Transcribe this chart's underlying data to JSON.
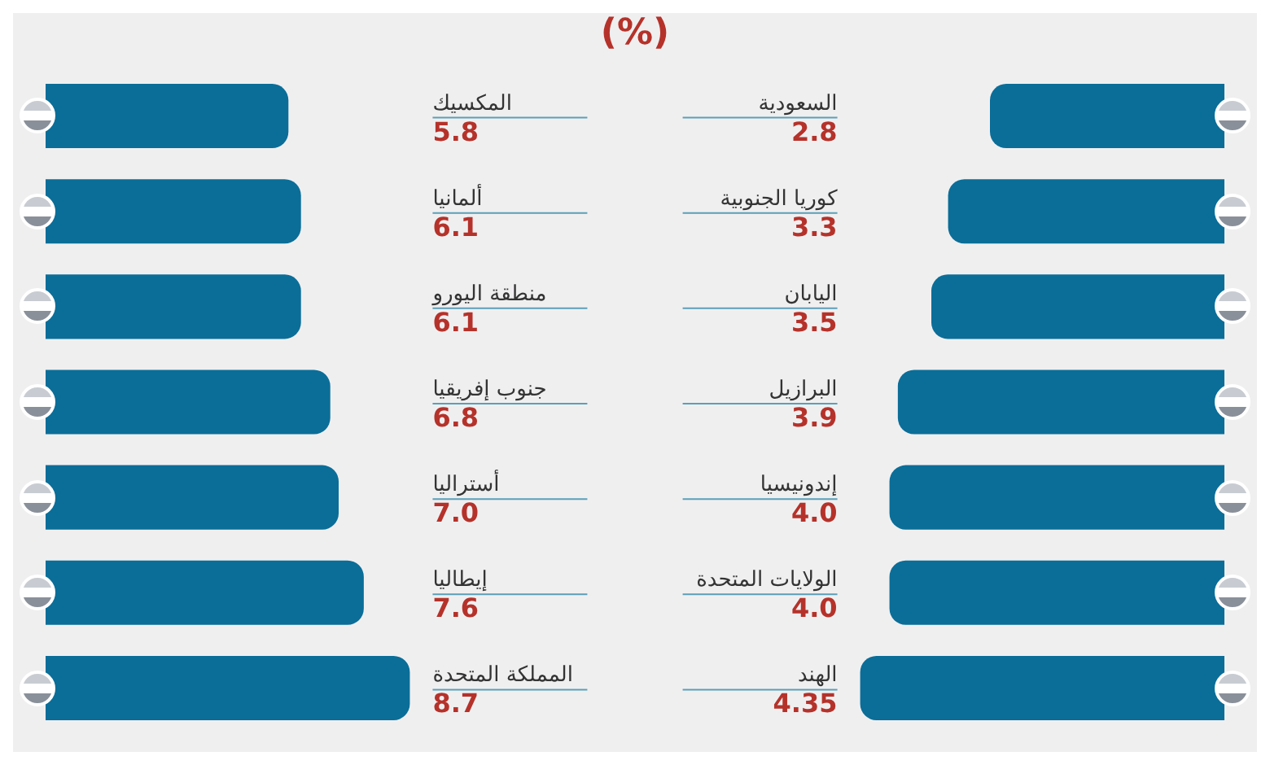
{
  "chart_data": [
    {
      "type": "bar",
      "orientation": "horizontal",
      "title": "(%)",
      "categories": [
        "السعودية",
        "كوريا الجنوبية",
        "اليابان",
        "البرازيل",
        "إندونيسيا",
        "الولايات المتحدة",
        "الهند"
      ],
      "values": [
        2.8,
        3.3,
        3.5,
        3.9,
        4.0,
        4.0,
        4.35
      ],
      "value_labels": [
        "2.8",
        "3.3",
        "3.5",
        "3.9",
        "4.0",
        "4.0",
        "4.35"
      ],
      "color": "#0a6e98"
    },
    {
      "type": "bar",
      "orientation": "horizontal",
      "categories": [
        "المكسيك",
        "ألمانيا",
        "منطقة اليورو",
        "جنوب إفريقيا",
        "أستراليا",
        "إيطاليا",
        "المملكة المتحدة"
      ],
      "values": [
        5.8,
        6.1,
        6.1,
        6.8,
        7.0,
        7.6,
        8.7
      ],
      "value_labels": [
        "5.8",
        "6.1",
        "6.1",
        "6.8",
        "7.0",
        "7.6",
        "8.7"
      ],
      "color": "#0a6e98"
    }
  ]
}
